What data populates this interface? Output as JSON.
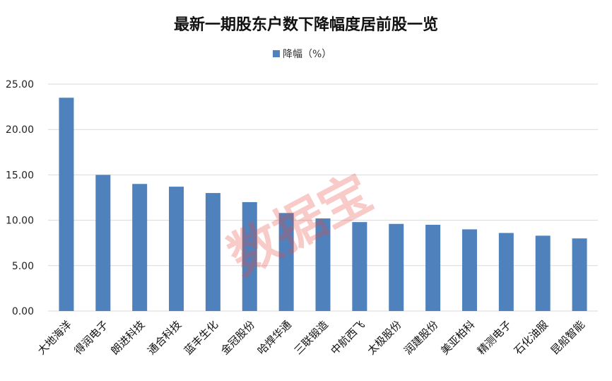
{
  "chart_data": {
    "type": "bar",
    "title": "最新一期股东户数下降幅度居前股一览",
    "legend": [
      "降幅（%）"
    ],
    "categories": [
      "大地海洋",
      "得润电子",
      "朗进科技",
      "通合科技",
      "蓝丰生化",
      "金冠股份",
      "哈焊华通",
      "三联锻造",
      "中航西飞",
      "太极股份",
      "润建股份",
      "美亚柏科",
      "精测电子",
      "石化油服",
      "昆船智能"
    ],
    "series": [
      {
        "name": "降幅（%）",
        "values": [
          23.5,
          15.0,
          14.0,
          13.7,
          13.0,
          12.0,
          10.8,
          10.2,
          9.8,
          9.6,
          9.5,
          9.0,
          8.6,
          8.3,
          8.0
        ]
      }
    ],
    "yticks": [
      "25.00",
      "20.00",
      "15.00",
      "10.00",
      "5.00",
      "0.00"
    ],
    "ylim": [
      0,
      25
    ],
    "xlabel": "",
    "ylabel": "",
    "grid": true,
    "legend_position": "top",
    "bar_color": "#4f81bd",
    "watermark": "数据宝"
  }
}
